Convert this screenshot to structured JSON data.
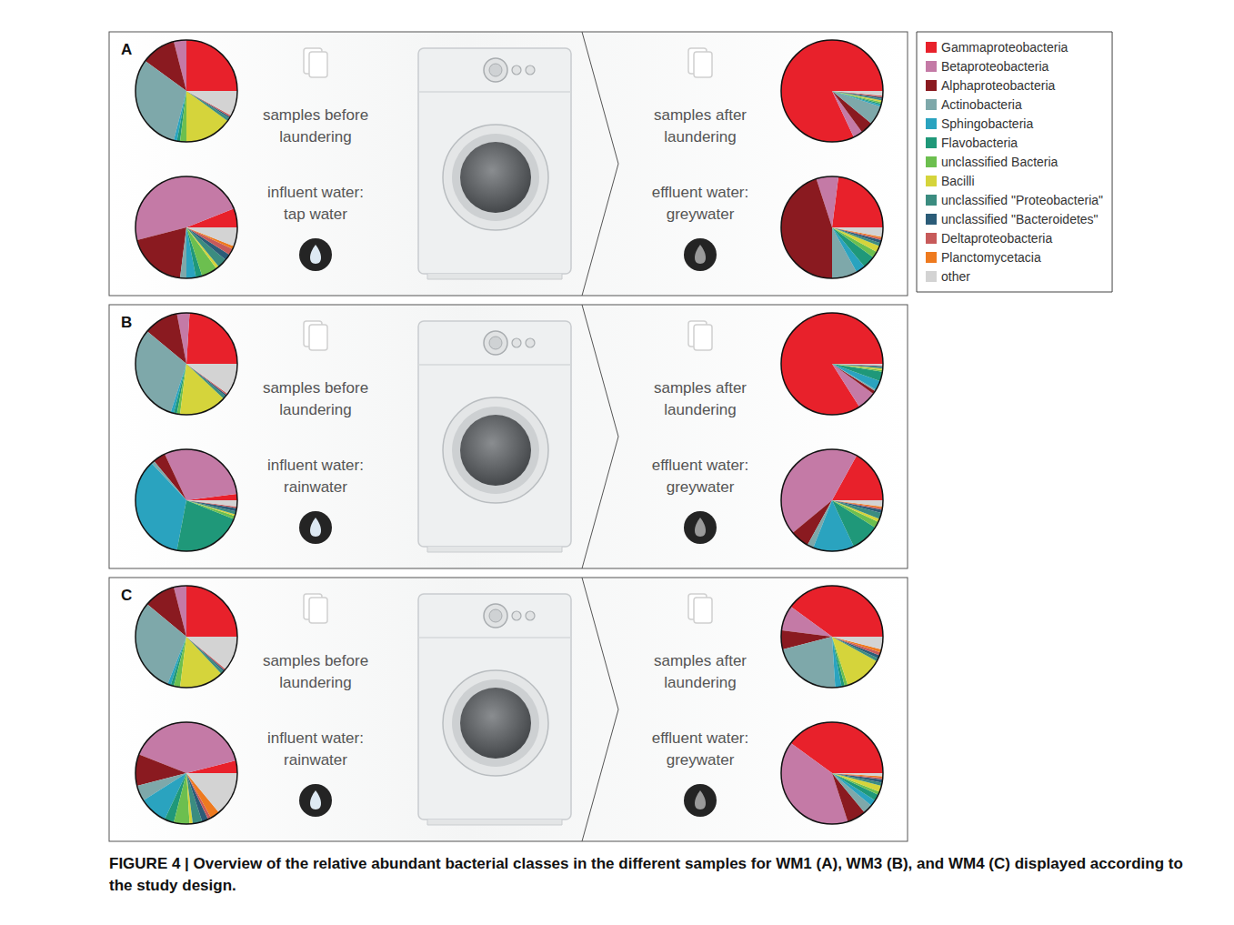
{
  "chart_data": {
    "type": "pie",
    "legend": "right",
    "data_labels": false,
    "categories": [
      "Gammaproteobacteria",
      "Betaproteobacteria",
      "Alphaproteobacteria",
      "Actinobacteria",
      "Sphingobacteria",
      "Flavobacteria",
      "unclassified Bacteria",
      "Bacilli",
      "unclassified \"Proteobacteria\"",
      "unclassified \"Bacteroidetes\"",
      "Deltaproteobacteria",
      "Planctomycetacia",
      "other"
    ],
    "colors": [
      "#e8212b",
      "#c47aa6",
      "#8a1a20",
      "#7ea8aa",
      "#2aa3bf",
      "#1f9879",
      "#6cbf4f",
      "#d5d43b",
      "#3b8c80",
      "#2b5c78",
      "#c75a5a",
      "#ee7a1f",
      "#d3d3d3"
    ],
    "panels": [
      {
        "label": "A",
        "before": {
          "text": [
            "samples before",
            "laundering"
          ],
          "values": [
            25,
            4,
            11,
            31,
            1,
            1,
            2,
            15,
            1,
            0.5,
            0.5,
            0,
            8
          ]
        },
        "influent": {
          "text": [
            "influent water:",
            "tap water"
          ],
          "values": [
            6,
            48,
            19,
            2,
            3,
            2,
            5,
            1,
            3,
            2,
            2,
            1,
            6
          ]
        },
        "after": {
          "text": [
            "samples after",
            "laundering"
          ],
          "values": [
            82,
            3,
            4,
            6,
            0.5,
            0.5,
            0.5,
            0.5,
            0.5,
            0.5,
            0.5,
            0,
            1.5
          ]
        },
        "effluent": {
          "text": [
            "effluent water:",
            "greywater"
          ],
          "values": [
            23,
            7,
            45,
            8,
            3,
            4,
            2,
            2,
            1,
            1,
            0.5,
            0.5,
            3
          ]
        }
      },
      {
        "label": "B",
        "before": {
          "text": [
            "samples before",
            "laundering"
          ],
          "values": [
            24,
            4,
            11,
            31,
            1,
            1,
            1,
            15,
            1,
            0.5,
            0.5,
            0,
            10
          ]
        },
        "influent": {
          "text": [
            "influent water:",
            "rainwater"
          ],
          "values": [
            2,
            30,
            4,
            1,
            35,
            22,
            1,
            0.5,
            1,
            1,
            0.5,
            0,
            2
          ]
        },
        "after": {
          "text": [
            "samples after",
            "laundering"
          ],
          "values": [
            84,
            6,
            1,
            0.5,
            3,
            3,
            0.5,
            0.5,
            0.5,
            0.3,
            0.2,
            0,
            0.5
          ]
        },
        "effluent": {
          "text": [
            "effluent water:",
            "greywater"
          ],
          "values": [
            17,
            44,
            6,
            2,
            13,
            9,
            2,
            1,
            2,
            1,
            0.5,
            0.5,
            2
          ]
        }
      },
      {
        "label": "C",
        "before": {
          "text": [
            "samples before",
            "laundering"
          ],
          "values": [
            25,
            4,
            10,
            30,
            1,
            1,
            2,
            14,
            1,
            0.5,
            0.5,
            0,
            11
          ]
        },
        "influent": {
          "text": [
            "influent water:",
            "rainwater"
          ],
          "values": [
            4,
            40,
            10,
            5,
            9,
            3,
            5,
            1,
            3,
            2,
            1,
            3,
            14
          ]
        },
        "after": {
          "text": [
            "samples after",
            "laundering"
          ],
          "values": [
            40,
            8,
            6,
            22,
            2,
            1,
            1,
            12,
            1,
            1,
            1,
            1,
            4
          ]
        },
        "effluent": {
          "text": [
            "effluent water:",
            "greywater"
          ],
          "values": [
            40,
            40,
            6,
            3,
            2,
            2,
            1,
            2,
            1,
            1,
            0.5,
            0.5,
            1
          ]
        }
      }
    ]
  },
  "caption": "FIGURE 4 | Overview of the relative abundant bacterial classes in the different samples for WM1 (A), WM3 (B), and WM4 (C) displayed according to the study design."
}
